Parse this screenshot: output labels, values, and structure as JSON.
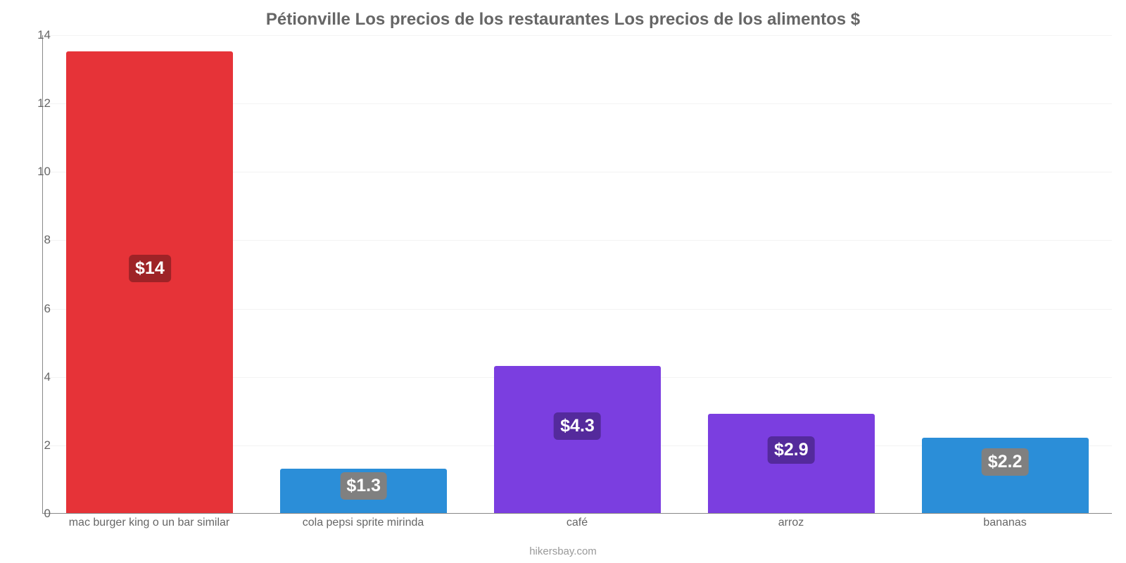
{
  "chart": {
    "type": "bar",
    "title": "Pétionville Los precios de los restaurantes Los precios de los alimentos $",
    "title_fontsize": 24,
    "title_color": "#666666",
    "credit": "hikersbay.com",
    "credit_fontsize": 15,
    "credit_color": "#999999",
    "background_color": "#ffffff",
    "grid_color": "#f3f3f3",
    "axis_color": "#888888",
    "tick_color": "#666666",
    "tick_fontsize": 17,
    "xlabel_fontsize": 16,
    "xlabel_color": "#666666",
    "ylim": [
      0,
      14
    ],
    "ytick_step": 2,
    "yticks": [
      0,
      2,
      4,
      6,
      8,
      10,
      12,
      14
    ],
    "bar_width_ratio": 0.78,
    "value_label_fontsize": 25,
    "categories": [
      "mac burger king o un bar similar",
      "cola pepsi sprite mirinda",
      "café",
      "arroz",
      "bananas"
    ],
    "values": [
      13.5,
      1.3,
      4.3,
      2.9,
      2.2
    ],
    "value_labels": [
      "$14",
      "$1.3",
      "$4.3",
      "$2.9",
      "$2.2"
    ],
    "bar_colors": [
      "#e63338",
      "#2b8ed8",
      "#7b3ee0",
      "#7b3ee0",
      "#2b8ed8"
    ],
    "badge_colors": [
      "#9e2327",
      "#808080",
      "#542a9c",
      "#542a9c",
      "#808080"
    ]
  }
}
